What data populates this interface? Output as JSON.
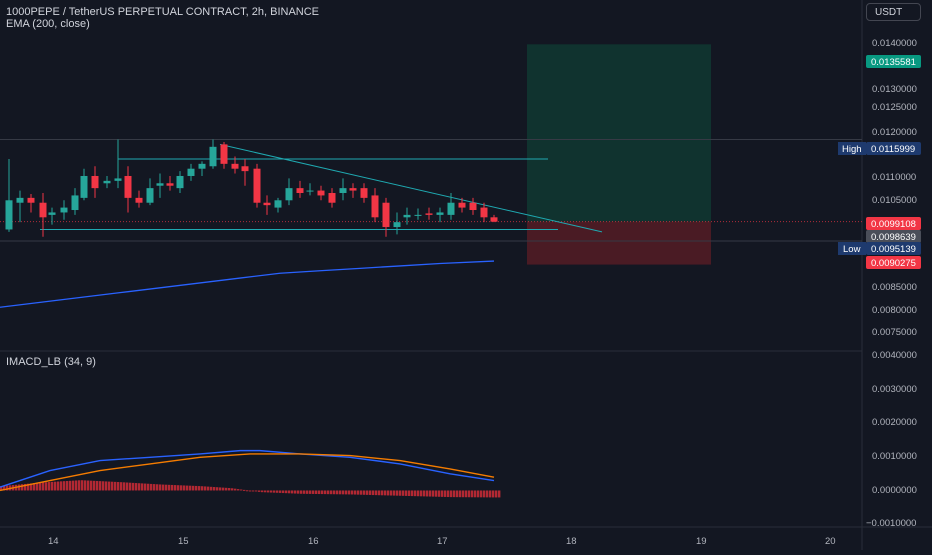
{
  "header": {
    "symbol_line": "1000PEPE / TetherUS PERPETUAL CONTRACT, 2h, BINANCE",
    "indicator_line": "EMA (200, close)",
    "currency_button": "USDT"
  },
  "price_axis": {
    "ticks": [
      "0.0140000",
      "0.0130000",
      "0.0125000",
      "0.0120000",
      "0.0110000",
      "0.0105000",
      "0.0085000",
      "0.0080000",
      "0.0075000"
    ],
    "labels": {
      "target": "0.0135581",
      "high_tag": "High",
      "high": "0.0115999",
      "last": "0.0099108",
      "current": "0.0098639",
      "low_tag": "Low",
      "low": "0.0095139",
      "stop": "0.0090275"
    }
  },
  "macd": {
    "title": "IMACD_LB (34, 9)",
    "ticks": [
      "0.0040000",
      "0.0030000",
      "0.0020000",
      "0.0010000",
      "0.0000000",
      "−0.0010000"
    ]
  },
  "time_axis": {
    "ticks": [
      "14",
      "15",
      "16",
      "17",
      "18",
      "19",
      "20"
    ]
  },
  "colors": {
    "bg": "#131722",
    "up": "#26a69a",
    "down": "#f23645",
    "ema": "#2962ff",
    "macd_line": "#2962ff",
    "signal_line": "#f57c00",
    "hist": "#b22833",
    "profit_zone": "#10332f",
    "loss_zone": "#4a1b24"
  },
  "chart_data": [
    {
      "type": "candlestick",
      "title": "1000PEPE / TetherUS PERPETUAL CONTRACT, 2h, BINANCE",
      "ylim": [
        0.00725,
        0.01447
      ],
      "candles": [
        {
          "x": 9,
          "o": 0.00975,
          "h": 0.0112,
          "l": 0.0097,
          "c": 0.01035
        },
        {
          "x": 20,
          "o": 0.0103,
          "h": 0.01055,
          "l": 0.0099,
          "c": 0.0104
        },
        {
          "x": 31,
          "o": 0.0104,
          "h": 0.01048,
          "l": 0.0101,
          "c": 0.0103
        },
        {
          "x": 43,
          "o": 0.0103,
          "h": 0.0105,
          "l": 0.0096,
          "c": 0.01
        },
        {
          "x": 52,
          "o": 0.01005,
          "h": 0.0102,
          "l": 0.00985,
          "c": 0.0101
        },
        {
          "x": 64,
          "o": 0.0101,
          "h": 0.01035,
          "l": 0.00995,
          "c": 0.0102
        },
        {
          "x": 75,
          "o": 0.01015,
          "h": 0.0106,
          "l": 0.01005,
          "c": 0.01045
        },
        {
          "x": 84,
          "o": 0.0104,
          "h": 0.011,
          "l": 0.01035,
          "c": 0.01085
        },
        {
          "x": 95,
          "o": 0.01085,
          "h": 0.01105,
          "l": 0.0104,
          "c": 0.0106
        },
        {
          "x": 107,
          "o": 0.0107,
          "h": 0.01085,
          "l": 0.0106,
          "c": 0.01075
        },
        {
          "x": 118,
          "o": 0.01075,
          "h": 0.0116,
          "l": 0.0106,
          "c": 0.0108
        },
        {
          "x": 128,
          "o": 0.01085,
          "h": 0.01105,
          "l": 0.0101,
          "c": 0.0104
        },
        {
          "x": 139,
          "o": 0.0104,
          "h": 0.01055,
          "l": 0.0102,
          "c": 0.0103
        },
        {
          "x": 150,
          "o": 0.0103,
          "h": 0.0108,
          "l": 0.01025,
          "c": 0.0106
        },
        {
          "x": 160,
          "o": 0.01065,
          "h": 0.0109,
          "l": 0.0104,
          "c": 0.0107
        },
        {
          "x": 170,
          "o": 0.0107,
          "h": 0.01085,
          "l": 0.01055,
          "c": 0.01065
        },
        {
          "x": 180,
          "o": 0.0106,
          "h": 0.01095,
          "l": 0.0105,
          "c": 0.01085
        },
        {
          "x": 191,
          "o": 0.01085,
          "h": 0.0111,
          "l": 0.01075,
          "c": 0.011
        },
        {
          "x": 202,
          "o": 0.011,
          "h": 0.01115,
          "l": 0.01085,
          "c": 0.0111
        },
        {
          "x": 213,
          "o": 0.01105,
          "h": 0.0116,
          "l": 0.011,
          "c": 0.01145
        },
        {
          "x": 224,
          "o": 0.0115,
          "h": 0.01155,
          "l": 0.011,
          "c": 0.0111
        },
        {
          "x": 235,
          "o": 0.0111,
          "h": 0.01125,
          "l": 0.0109,
          "c": 0.011
        },
        {
          "x": 245,
          "o": 0.01105,
          "h": 0.0112,
          "l": 0.01065,
          "c": 0.01095
        },
        {
          "x": 257,
          "o": 0.011,
          "h": 0.0111,
          "l": 0.0102,
          "c": 0.0103
        },
        {
          "x": 267,
          "o": 0.0103,
          "h": 0.01045,
          "l": 0.01005,
          "c": 0.01025
        },
        {
          "x": 278,
          "o": 0.0102,
          "h": 0.0104,
          "l": 0.0101,
          "c": 0.01035
        },
        {
          "x": 289,
          "o": 0.01035,
          "h": 0.0108,
          "l": 0.01025,
          "c": 0.0106
        },
        {
          "x": 300,
          "o": 0.0106,
          "h": 0.01075,
          "l": 0.0104,
          "c": 0.0105
        },
        {
          "x": 310,
          "o": 0.01055,
          "h": 0.0107,
          "l": 0.01045,
          "c": 0.01055
        },
        {
          "x": 321,
          "o": 0.01055,
          "h": 0.01065,
          "l": 0.01035,
          "c": 0.01045
        },
        {
          "x": 332,
          "o": 0.0105,
          "h": 0.0106,
          "l": 0.0102,
          "c": 0.0103
        },
        {
          "x": 343,
          "o": 0.0105,
          "h": 0.0108,
          "l": 0.01035,
          "c": 0.0106
        },
        {
          "x": 353,
          "o": 0.0106,
          "h": 0.0107,
          "l": 0.0104,
          "c": 0.01055
        },
        {
          "x": 364,
          "o": 0.0106,
          "h": 0.0107,
          "l": 0.0103,
          "c": 0.0104
        },
        {
          "x": 375,
          "o": 0.01045,
          "h": 0.0106,
          "l": 0.0099,
          "c": 0.01
        },
        {
          "x": 386,
          "o": 0.0103,
          "h": 0.0104,
          "l": 0.0096,
          "c": 0.0098
        },
        {
          "x": 397,
          "o": 0.0098,
          "h": 0.0101,
          "l": 0.00965,
          "c": 0.0099
        },
        {
          "x": 407,
          "o": 0.01,
          "h": 0.0102,
          "l": 0.00985,
          "c": 0.01005
        },
        {
          "x": 418,
          "o": 0.01005,
          "h": 0.01018,
          "l": 0.00995,
          "c": 0.01005
        },
        {
          "x": 429,
          "o": 0.01008,
          "h": 0.0102,
          "l": 0.00995,
          "c": 0.01005
        },
        {
          "x": 440,
          "o": 0.01005,
          "h": 0.0102,
          "l": 0.0099,
          "c": 0.0101
        },
        {
          "x": 451,
          "o": 0.01005,
          "h": 0.0105,
          "l": 0.00995,
          "c": 0.0103
        },
        {
          "x": 462,
          "o": 0.0103,
          "h": 0.0104,
          "l": 0.0101,
          "c": 0.0102
        },
        {
          "x": 473,
          "o": 0.0103,
          "h": 0.0104,
          "l": 0.01005,
          "c": 0.01015
        },
        {
          "x": 484,
          "o": 0.0102,
          "h": 0.0103,
          "l": 0.0099,
          "c": 0.01
        },
        {
          "x": 494,
          "o": 0.01,
          "h": 0.01005,
          "l": 0.0099,
          "c": 0.00991
        }
      ],
      "ema": [
        [
          0,
          0.00815
        ],
        [
          40,
          0.00825
        ],
        [
          80,
          0.00835
        ],
        [
          120,
          0.00845
        ],
        [
          160,
          0.00855
        ],
        [
          200,
          0.00865
        ],
        [
          240,
          0.00875
        ],
        [
          280,
          0.00885
        ],
        [
          320,
          0.0089
        ],
        [
          360,
          0.00895
        ],
        [
          400,
          0.009
        ],
        [
          440,
          0.00905
        ],
        [
          494,
          0.0091
        ]
      ],
      "levels": {
        "trendline": [
          [
            220,
            0.0115
          ],
          [
            602,
            0.0097
          ]
        ],
        "resistance": [
          [
            118,
            0.0112
          ],
          [
            548,
            0.0112
          ]
        ],
        "support": [
          [
            40,
            0.00975
          ],
          [
            558,
            0.00975
          ]
        ],
        "high_line": 0.0115999,
        "low_line": 0.0095139
      },
      "position": {
        "x_start": 527,
        "x_end": 711,
        "target": 0.0135581,
        "entry": 0.0099108,
        "stop": 0.0090275
      }
    },
    {
      "type": "line",
      "title": "IMACD_LB (34, 9)",
      "ylim": [
        -0.0011,
        0.0042
      ],
      "series": [
        {
          "role": "macd",
          "points": [
            [
              0,
              0.0001
            ],
            [
              50,
              0.0006
            ],
            [
              100,
              0.0009
            ],
            [
              150,
              0.001
            ],
            [
              200,
              0.0011
            ],
            [
              240,
              0.0012
            ],
            [
              260,
              0.0012
            ],
            [
              300,
              0.0011
            ],
            [
              350,
              0.001
            ],
            [
              400,
              0.0008
            ],
            [
              450,
              0.0005
            ],
            [
              494,
              0.0003
            ]
          ]
        },
        {
          "role": "signal",
          "points": [
            [
              0,
              0.0
            ],
            [
              50,
              0.0003
            ],
            [
              100,
              0.0006
            ],
            [
              150,
              0.0008
            ],
            [
              200,
              0.001
            ],
            [
              250,
              0.0011
            ],
            [
              300,
              0.0011
            ],
            [
              350,
              0.00105
            ],
            [
              400,
              0.0009
            ],
            [
              450,
              0.00065
            ],
            [
              494,
              0.0004
            ]
          ]
        }
      ],
      "histogram": [
        [
          0,
          0.00013
        ],
        [
          40,
          0.00024
        ],
        [
          80,
          0.00031
        ],
        [
          120,
          0.00025
        ],
        [
          160,
          0.00018
        ],
        [
          200,
          0.00013
        ],
        [
          230,
          7e-05
        ],
        [
          260,
          -5e-05
        ],
        [
          300,
          -0.0001
        ],
        [
          350,
          -0.00012
        ],
        [
          400,
          -0.00016
        ],
        [
          450,
          -0.0002
        ],
        [
          494,
          -0.00021
        ]
      ]
    }
  ]
}
